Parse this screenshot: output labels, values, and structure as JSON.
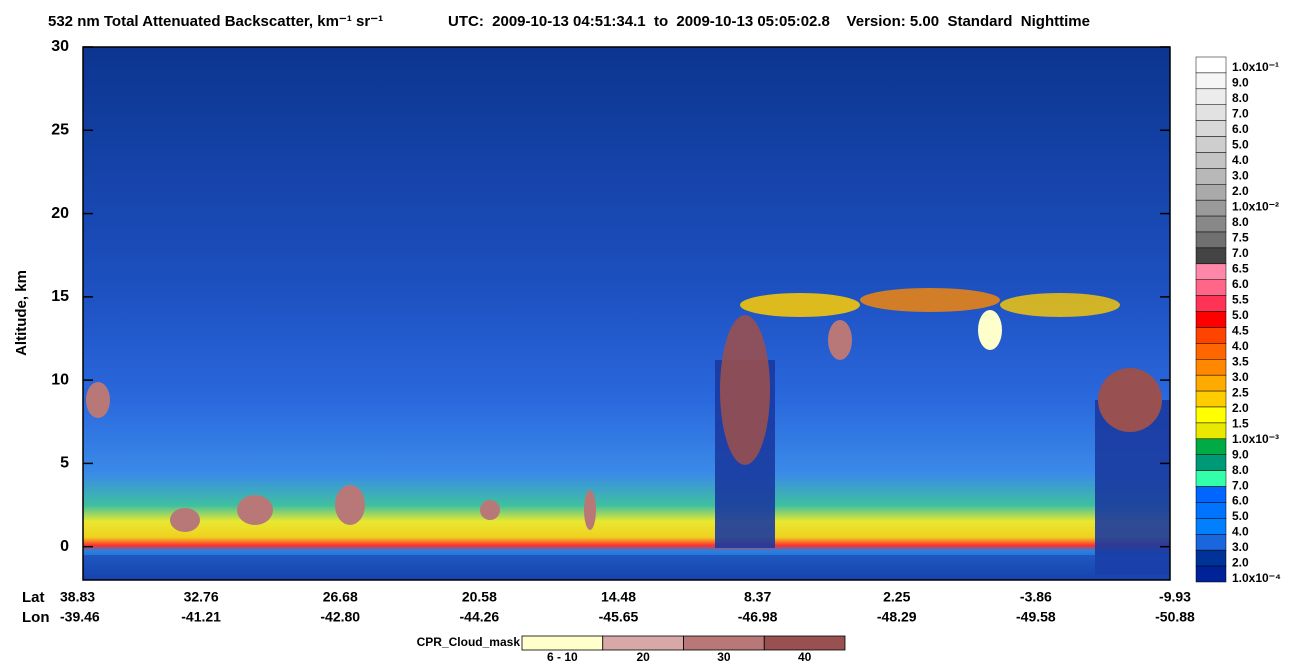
{
  "chart_data": {
    "type": "heatmap",
    "title": "532 nm Total Attenuated Backscatter, km⁻¹ sr⁻¹",
    "subtitle": "UTC:  2009-10-13 04:51:34.1  to  2009-10-13 05:05:02.8    Version: 5.00  Standard  Nighttime",
    "ylabel": "Altitude, km",
    "ylim": [
      -2,
      30
    ],
    "yticks": [
      0,
      5,
      10,
      15,
      20,
      25,
      30
    ],
    "x_row_labels": [
      "Lat",
      "Lon"
    ],
    "lat": [
      "38.83",
      "32.76",
      "26.68",
      "20.58",
      "14.48",
      "8.37",
      "2.25",
      "-3.86",
      "-9.93"
    ],
    "lon": [
      "-39.46",
      "-41.21",
      "-42.80",
      "-44.26",
      "-45.65",
      "-46.98",
      "-48.29",
      "-49.58",
      "-50.88"
    ],
    "colorbar": {
      "labels": [
        "1.0x10⁻¹",
        "9.0",
        "8.0",
        "7.0",
        "6.0",
        "5.0",
        "4.0",
        "3.0",
        "2.0",
        "1.0x10⁻²",
        "8.0",
        "7.5",
        "7.0",
        "6.5",
        "6.0",
        "5.5",
        "5.0",
        "4.5",
        "4.0",
        "3.5",
        "3.0",
        "2.5",
        "2.0",
        "1.5",
        "1.0x10⁻³",
        "9.0",
        "8.0",
        "7.0",
        "6.0",
        "5.0",
        "4.0",
        "3.0",
        "2.0",
        "1.0x10⁻⁴"
      ],
      "colors": [
        "#ffffff",
        "#f6f6f6",
        "#ececec",
        "#e2e2e2",
        "#d8d8d8",
        "#cecece",
        "#c4c4c4",
        "#b8b8b8",
        "#aaaaaa",
        "#9a9a9a",
        "#888888",
        "#707070",
        "#444444",
        "#ff88aa",
        "#ff6688",
        "#ff3355",
        "#ff0000",
        "#ff4400",
        "#ff6600",
        "#ff8800",
        "#ffaa00",
        "#ffcc00",
        "#ffff00",
        "#e8e800",
        "#00aa44",
        "#009977",
        "#33ffaa",
        "#0066ff",
        "#0073ff",
        "#0080ff",
        "#1a66dd",
        "#003399",
        "#002299"
      ]
    },
    "cloud_mask": {
      "title": "CPR_Cloud_mask",
      "categories": [
        "6 - 10",
        "20",
        "30",
        "40"
      ],
      "colors": [
        "#ffffcc",
        "#d8a8a8",
        "#b87878",
        "#985050"
      ]
    }
  }
}
